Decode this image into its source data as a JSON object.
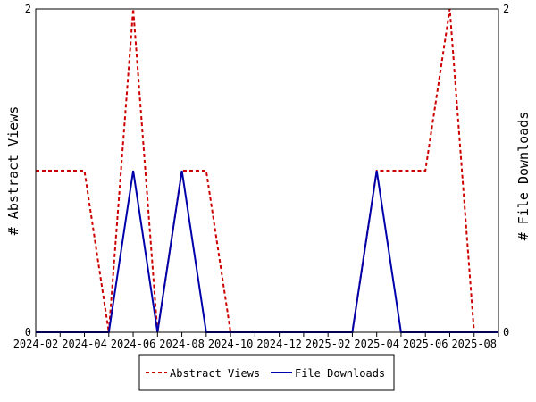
{
  "chart_data": {
    "type": "line",
    "x": [
      "2024-02",
      "2024-03",
      "2024-04",
      "2024-05",
      "2024-06",
      "2024-07",
      "2024-08",
      "2024-09",
      "2024-10",
      "2024-11",
      "2024-12",
      "2025-01",
      "2025-02",
      "2025-03",
      "2025-04",
      "2025-05",
      "2025-06",
      "2025-07",
      "2025-08",
      "2025-09"
    ],
    "x_ticks": [
      "2024-02",
      "2024-04",
      "2024-06",
      "2024-08",
      "2024-10",
      "2024-12",
      "2025-02",
      "2025-04",
      "2025-06",
      "2025-08"
    ],
    "series": [
      {
        "name": "Abstract Views",
        "axis": "left",
        "color": "#cc0000",
        "dash": "dashed",
        "values": [
          1,
          1,
          1,
          0,
          2,
          0,
          1,
          1,
          0,
          0,
          0,
          0,
          0,
          0,
          1,
          1,
          1,
          2,
          0,
          0
        ]
      },
      {
        "name": "File Downloads",
        "axis": "right",
        "color": "#0000aa",
        "dash": "solid",
        "values": [
          0,
          0,
          0,
          0,
          1,
          0,
          1,
          0,
          0,
          0,
          0,
          0,
          0,
          0,
          1,
          0,
          0,
          0,
          0,
          0
        ]
      }
    ],
    "ylabel_left": "# Abstract Views",
    "ylabel_right": "# File Downloads",
    "ylim_left": [
      0,
      2
    ],
    "ylim_right": [
      0,
      2
    ],
    "yticks_left": [
      "0",
      "2"
    ],
    "yticks_right": [
      "0",
      "2"
    ],
    "legend_position": "bottom-center",
    "grid": false
  }
}
